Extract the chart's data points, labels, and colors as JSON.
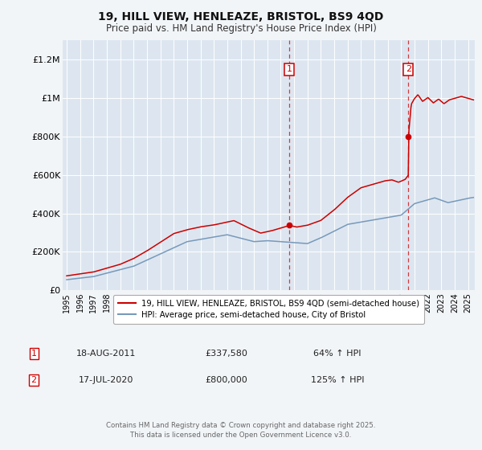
{
  "title": "19, HILL VIEW, HENLEAZE, BRISTOL, BS9 4QD",
  "subtitle": "Price paid vs. HM Land Registry's House Price Index (HPI)",
  "background_color": "#f2f5f8",
  "plot_bg_color": "#dde6f0",
  "grid_color": "#ffffff",
  "red_color": "#cc0000",
  "blue_color": "#7799bb",
  "ylim": [
    0,
    1300000
  ],
  "yticks": [
    0,
    200000,
    400000,
    600000,
    800000,
    1000000,
    1200000
  ],
  "ytick_labels": [
    "£0",
    "£200K",
    "£400K",
    "£600K",
    "£800K",
    "£1M",
    "£1.2M"
  ],
  "xlim_start": 1994.7,
  "xlim_end": 2025.5,
  "sale1_x": 2011.63,
  "sale1_y": 337580,
  "sale2_x": 2020.54,
  "sale2_y": 800000,
  "legend_red": "19, HILL VIEW, HENLEAZE, BRISTOL, BS9 4QD (semi-detached house)",
  "legend_blue": "HPI: Average price, semi-detached house, City of Bristol",
  "table_row1": [
    "1",
    "18-AUG-2011",
    "£337,580",
    "64% ↑ HPI"
  ],
  "table_row2": [
    "2",
    "17-JUL-2020",
    "£800,000",
    "125% ↑ HPI"
  ],
  "footer": "Contains HM Land Registry data © Crown copyright and database right 2025.\nThis data is licensed under the Open Government Licence v3.0.",
  "xticks": [
    1995,
    1996,
    1997,
    1998,
    1999,
    2000,
    2001,
    2002,
    2003,
    2004,
    2005,
    2006,
    2007,
    2008,
    2009,
    2010,
    2011,
    2012,
    2013,
    2014,
    2015,
    2016,
    2017,
    2018,
    2019,
    2020,
    2021,
    2022,
    2023,
    2024,
    2025
  ]
}
